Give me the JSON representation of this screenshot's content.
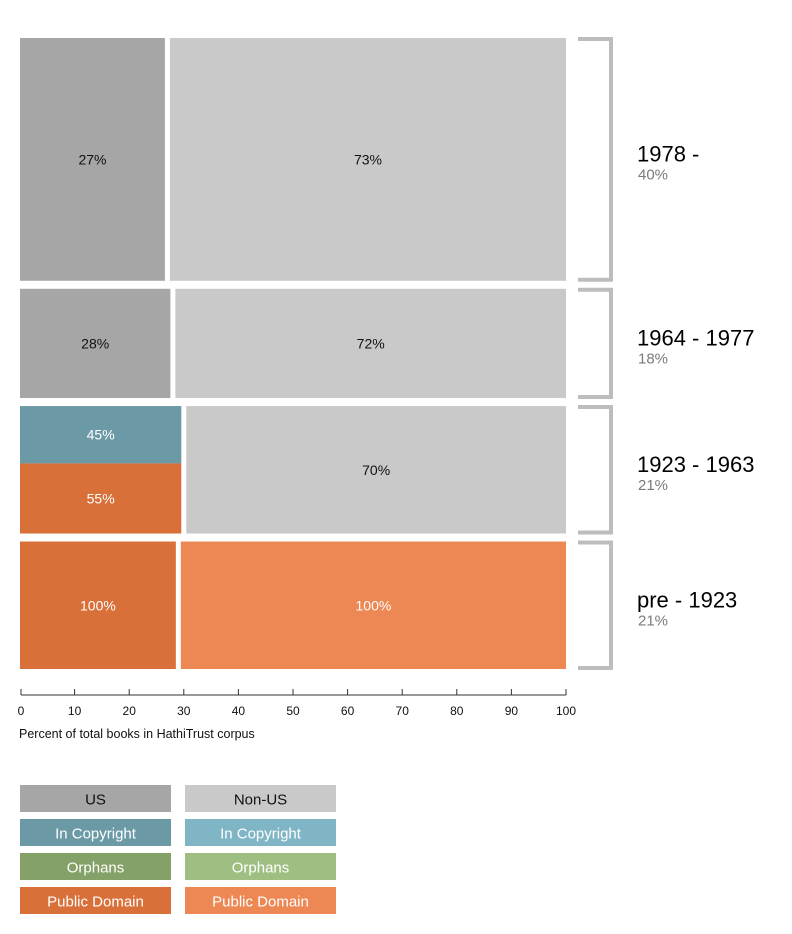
{
  "chart_data": {
    "type": "mosaic",
    "xlabel": "Percent of total books in HathiTrust corpus",
    "x_range": [
      0,
      100
    ],
    "x_ticks": [
      "0",
      "10",
      "20",
      "30",
      "40",
      "50",
      "60",
      "70",
      "80",
      "90",
      "100"
    ],
    "rows": [
      {
        "period": "1978 -",
        "share": "40%",
        "share_value": 40,
        "us_share": 27,
        "us_segments": [
          {
            "category": "US",
            "status": "US",
            "label": "27%",
            "fraction": 1.0
          }
        ],
        "nonus_segments": [
          {
            "category": "Non-US",
            "status": "Non-US",
            "label": "73%",
            "fraction": 1.0
          }
        ]
      },
      {
        "period": "1964 - 1977",
        "share": "18%",
        "share_value": 18,
        "us_share": 28,
        "us_segments": [
          {
            "category": "US",
            "status": "US",
            "label": "28%",
            "fraction": 1.0
          }
        ],
        "nonus_segments": [
          {
            "category": "Non-US",
            "status": "Non-US",
            "label": "72%",
            "fraction": 1.0
          }
        ]
      },
      {
        "period": "1923 - 1963",
        "share": "21%",
        "share_value": 21,
        "us_share": 30,
        "us_segments": [
          {
            "category": "US",
            "status": "In Copyright",
            "label": "45%",
            "fraction": 0.45
          },
          {
            "category": "US",
            "status": "Public Domain",
            "label": "55%",
            "fraction": 0.55
          }
        ],
        "nonus_segments": [
          {
            "category": "Non-US",
            "status": "Non-US",
            "label": "70%",
            "fraction": 1.0
          }
        ]
      },
      {
        "period": "pre - 1923",
        "share": "21%",
        "share_value": 21,
        "us_share": 29,
        "us_segments": [
          {
            "category": "US",
            "status": "Public Domain",
            "label": "100%",
            "fraction": 1.0
          }
        ],
        "nonus_segments": [
          {
            "category": "Non-US",
            "status": "Public Domain",
            "label": "100%",
            "fraction": 1.0
          }
        ]
      }
    ],
    "legend": {
      "placement": "bottom-left",
      "items": [
        {
          "label": "US",
          "key": "us-base",
          "color": "#a6a6a6",
          "text_color": "#111111"
        },
        {
          "label": "Non-US",
          "key": "nonus-base",
          "color": "#c9c9c9",
          "text_color": "#111111"
        },
        {
          "label": "In Copyright",
          "key": "us-copyright",
          "color": "#6b9aa6",
          "text_color": "#ffffff"
        },
        {
          "label": "In Copyright",
          "key": "nonus-copyright",
          "color": "#80b5c6",
          "text_color": "#ffffff"
        },
        {
          "label": "Orphans",
          "key": "us-orphans",
          "color": "#84a168",
          "text_color": "#ffffff"
        },
        {
          "label": "Orphans",
          "key": "nonus-orphans",
          "color": "#9fbf82",
          "text_color": "#ffffff"
        },
        {
          "label": "Public Domain",
          "key": "us-public",
          "color": "#d9703a",
          "text_color": "#ffffff"
        },
        {
          "label": "Public Domain",
          "key": "nonus-public",
          "color": "#ed8753",
          "text_color": "#ffffff"
        }
      ]
    },
    "colors": {
      "US|US": "#a6a6a6",
      "Non-US|Non-US": "#c9c9c9",
      "US|In Copyright": "#6b9aa6",
      "Non-US|In Copyright": "#80b5c6",
      "US|Orphans": "#84a168",
      "Non-US|Orphans": "#9fbf82",
      "US|Public Domain": "#d9703a",
      "Non-US|Public Domain": "#ed8753",
      "bracket": "#bdbdbd",
      "share_text": "#7a7a7a",
      "axis": "#333333"
    }
  }
}
